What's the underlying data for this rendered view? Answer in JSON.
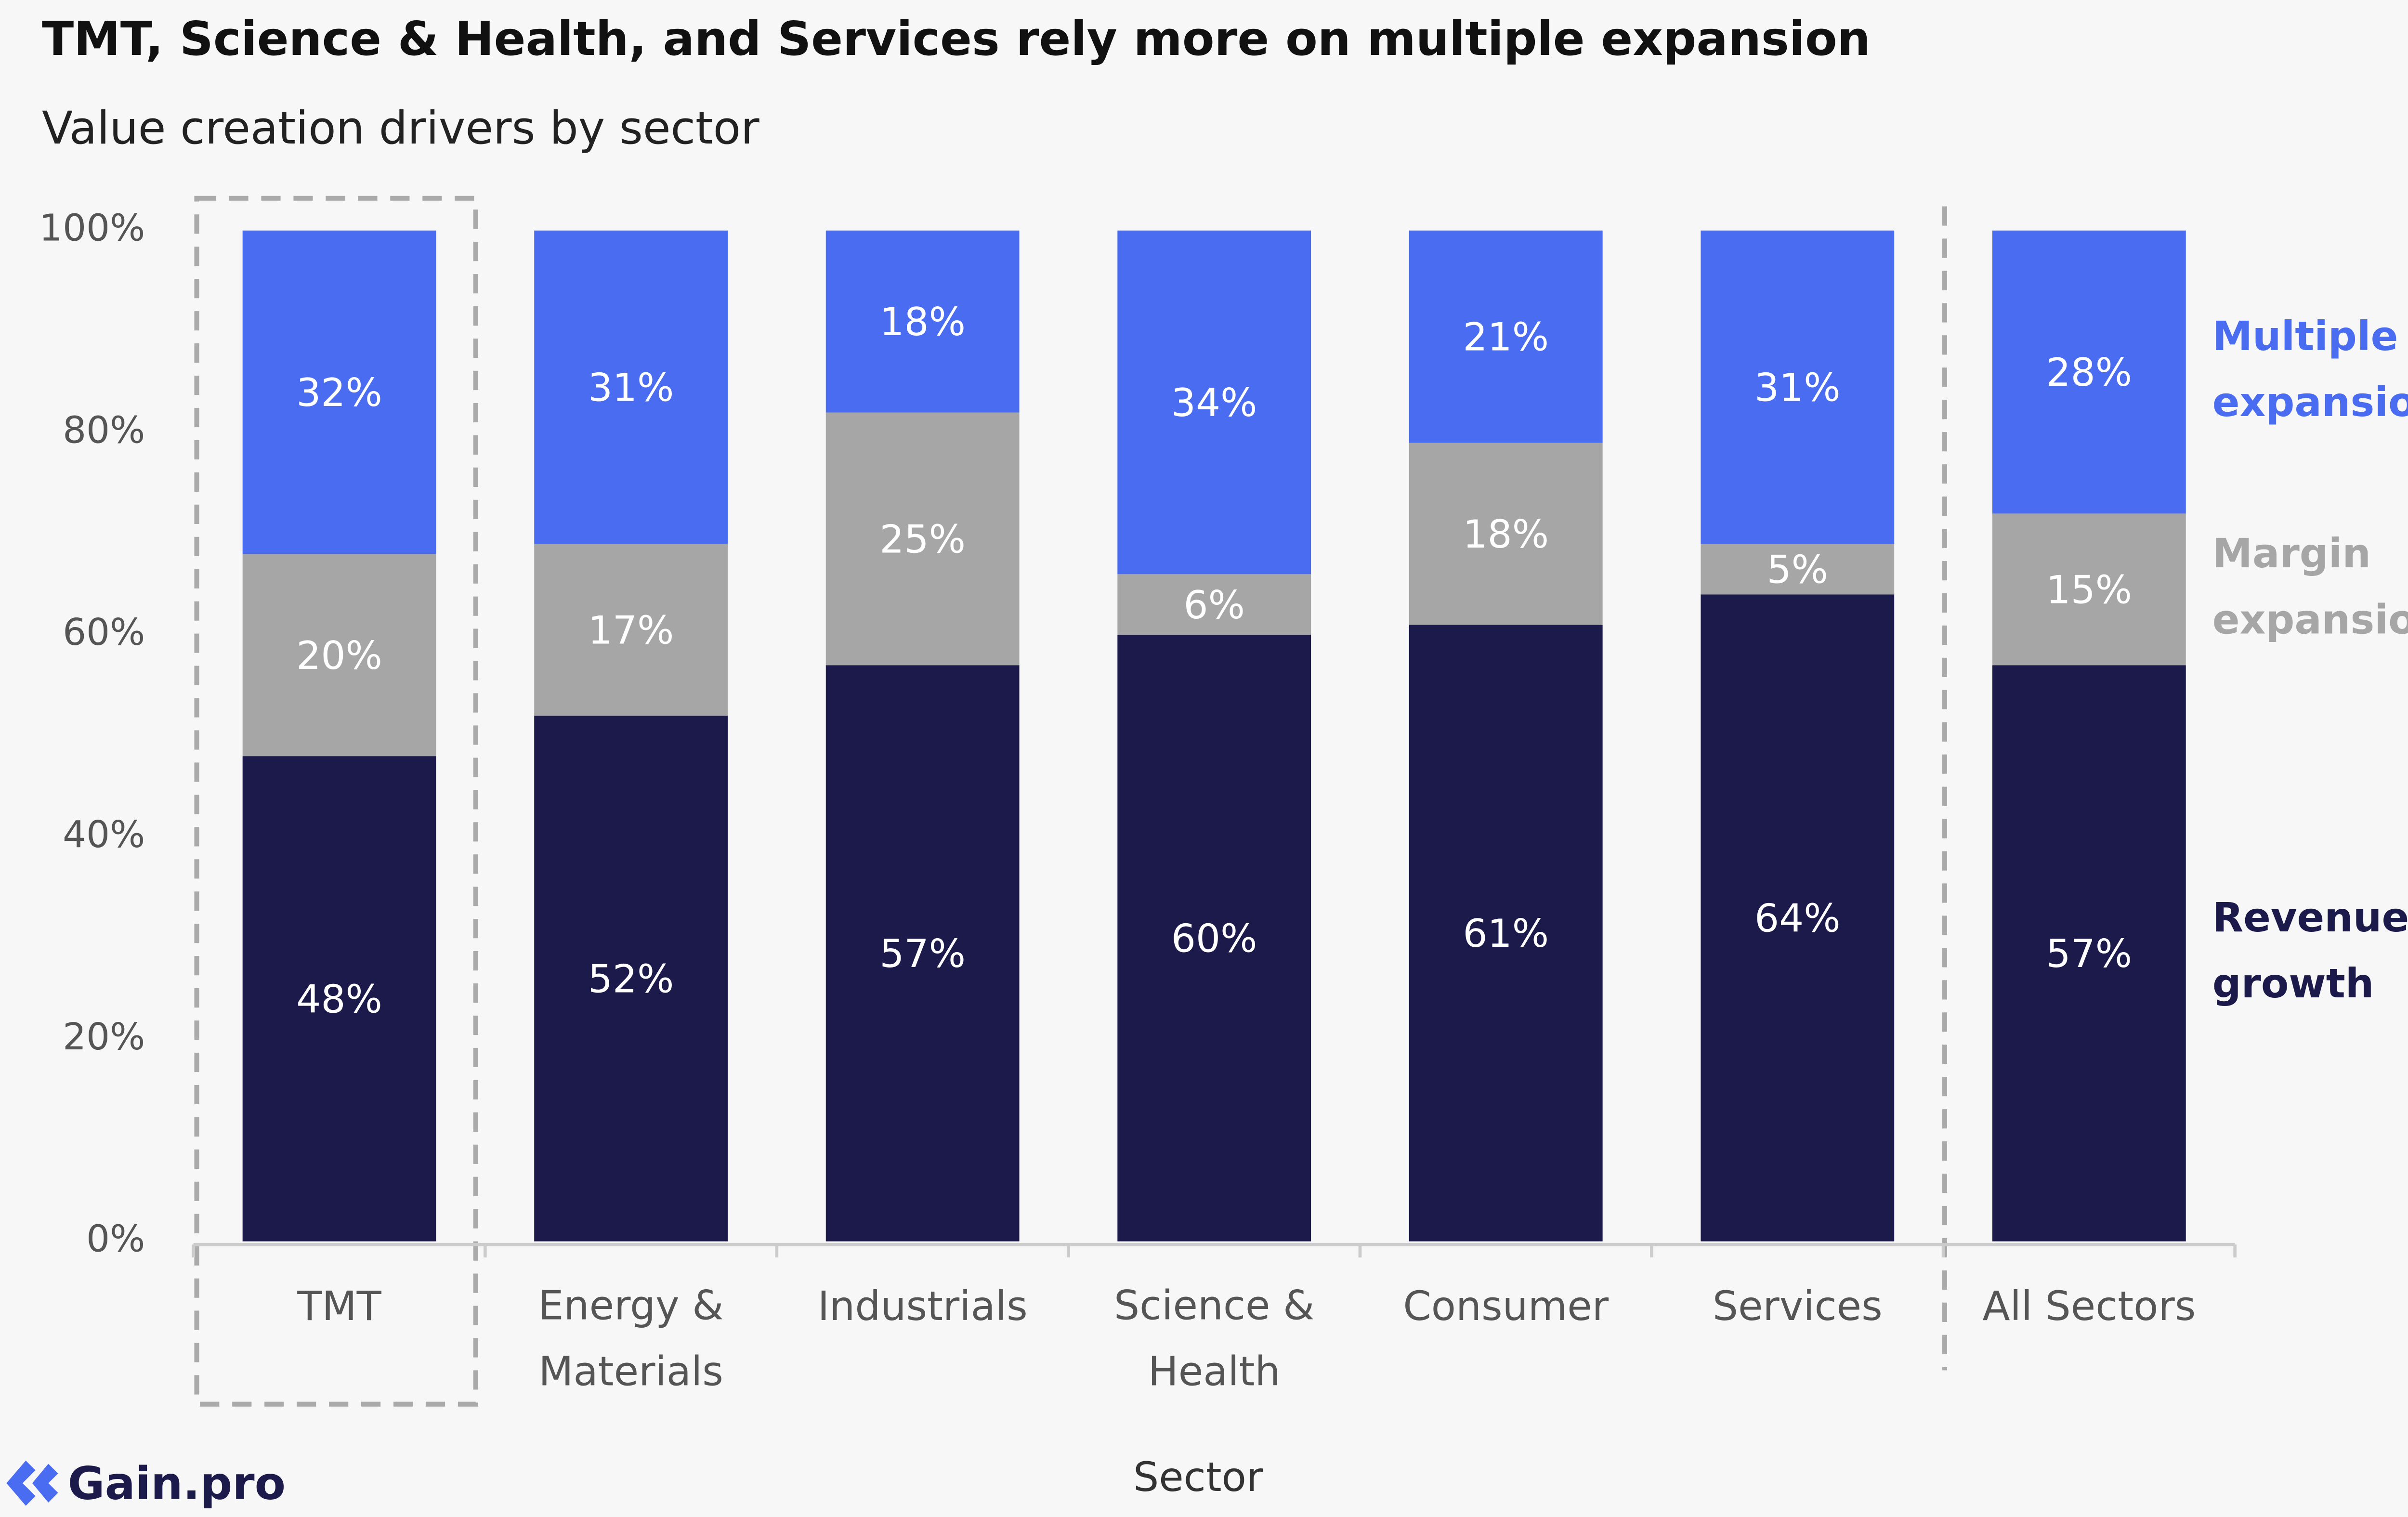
{
  "title": "TMT, Science & Health, and Services rely more on multiple expansion",
  "subtitle": "Value creation drivers by sector",
  "logo": "Gain.pro",
  "chart_data": {
    "type": "stacked-bar",
    "x_label": "Sector",
    "categories": [
      "TMT",
      "Energy & Materials",
      "Industrials",
      "Science & Health",
      "Consumer",
      "Services",
      "All Sectors"
    ],
    "series": [
      {
        "name": "Revenue growth",
        "color": "#1c1a4a",
        "values": [
          48,
          52,
          57,
          60,
          61,
          64,
          57
        ],
        "value_labels": [
          "48%",
          "52%",
          "57%",
          "60%",
          "61%",
          "64%",
          "57%"
        ]
      },
      {
        "name": "Margin expansion",
        "color": "#a6a6a6",
        "values": [
          20,
          17,
          25,
          6,
          18,
          5,
          15
        ],
        "value_labels": [
          "20%",
          "17%",
          "25%",
          "6%",
          "18%",
          "5%",
          "15%"
        ]
      },
      {
        "name": "Multiple expansion",
        "color": "#4a6cf0",
        "values": [
          32,
          31,
          18,
          34,
          21,
          31,
          28
        ],
        "value_labels": [
          "32%",
          "31%",
          "18%",
          "34%",
          "21%",
          "31%",
          "28%"
        ]
      }
    ],
    "ylim": [
      0,
      100
    ],
    "yticks": [
      {
        "value": 0,
        "label": "0%"
      },
      {
        "value": 20,
        "label": "20%"
      },
      {
        "value": 40,
        "label": "40%"
      },
      {
        "value": 60,
        "label": "60%"
      },
      {
        "value": 80,
        "label": "80%"
      },
      {
        "value": 100,
        "label": "100%"
      }
    ],
    "grid": false,
    "legend": "right"
  }
}
